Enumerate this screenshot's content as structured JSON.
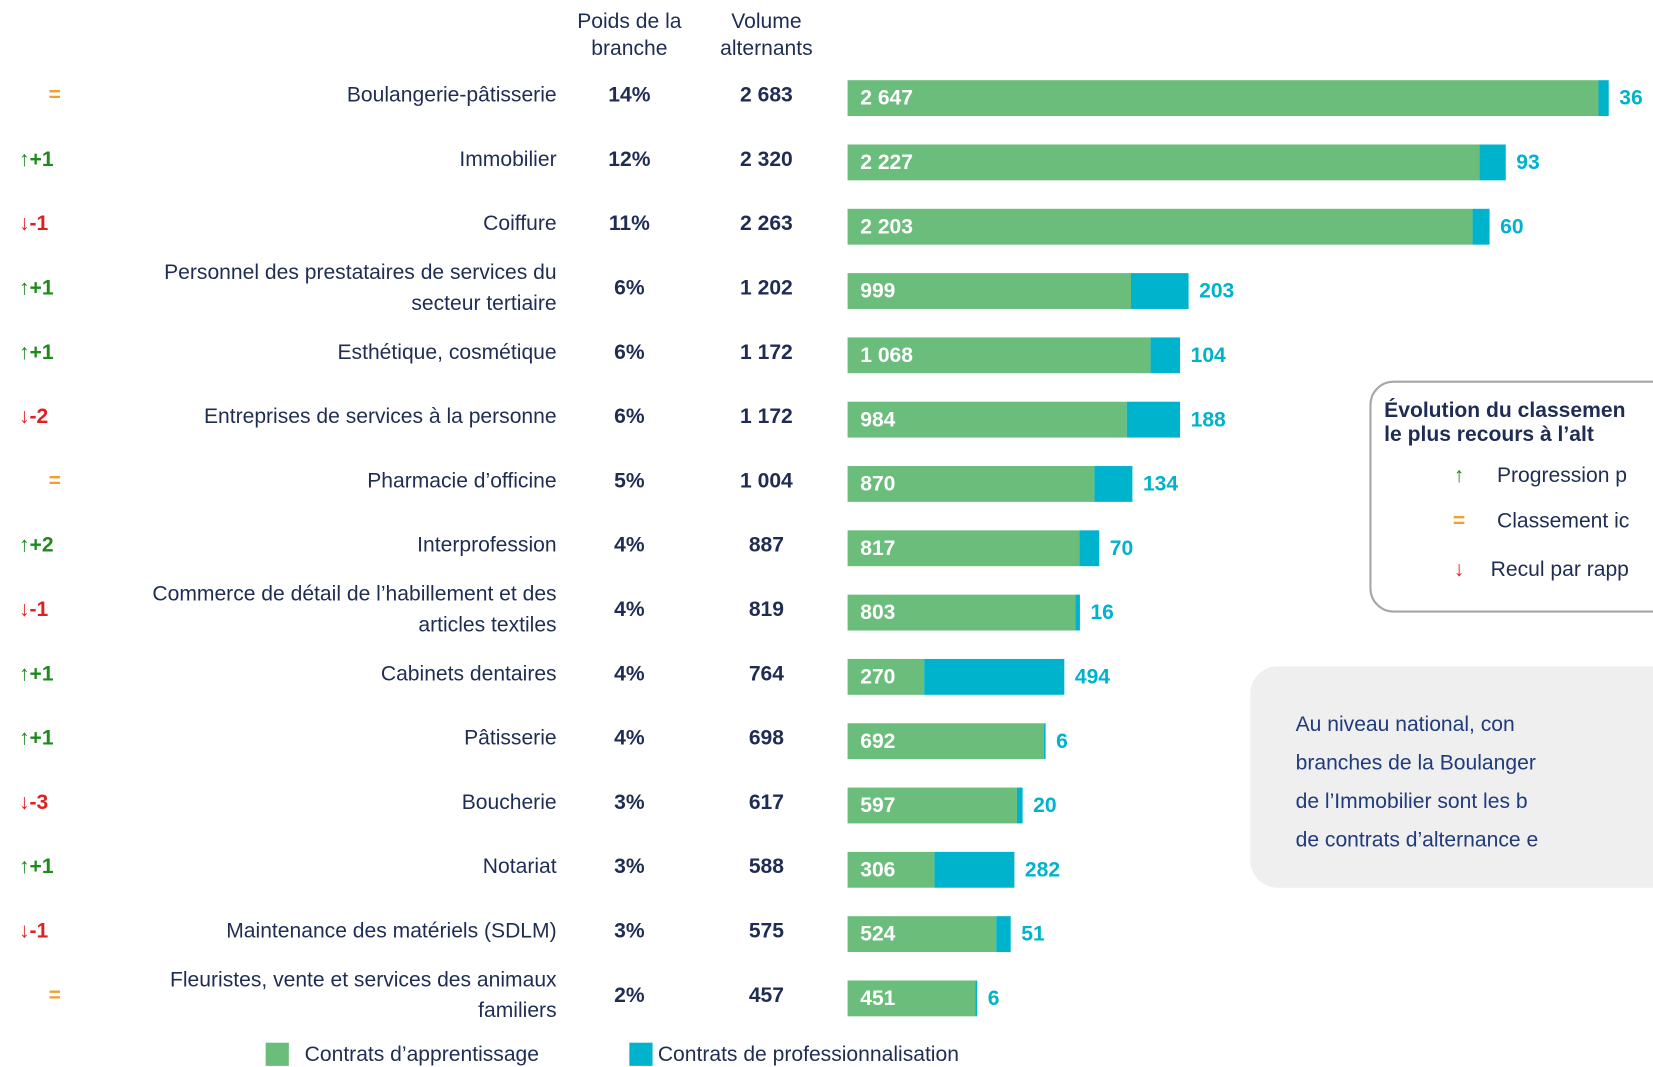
{
  "chart_data": {
    "type": "stacked_hbar",
    "column_headers": [
      [
        "Poids de la",
        "branche"
      ],
      [
        "Volume",
        "alternants"
      ]
    ],
    "categories": [
      [
        "Boulangerie-pâtisserie"
      ],
      [
        "Immobilier"
      ],
      [
        "Coiffure"
      ],
      [
        "Personnel des prestataires de services du",
        "secteur tertiaire"
      ],
      [
        "Esthétique, cosmétique"
      ],
      [
        "Entreprises de services à la personne"
      ],
      [
        "Pharmacie d’officine"
      ],
      [
        "Interprofession"
      ],
      [
        "Commerce de détail de l’habillement et des",
        "articles textiles"
      ],
      [
        "Cabinets dentaires"
      ],
      [
        "Pâtisserie"
      ],
      [
        "Boucherie"
      ],
      [
        "Notariat"
      ],
      [
        "Maintenance des matériels (SDLM)"
      ],
      [
        "Fleuristes, vente et services des animaux",
        "familiers"
      ]
    ],
    "rank_change": [
      "=",
      "↑+1",
      "↓-1",
      "↑+1",
      "↑+1",
      "↓-2",
      "=",
      "↑+2",
      "↓-1",
      "↑+1",
      "↑+1",
      "↓-3",
      "↑+1",
      "↓-1",
      "="
    ],
    "weight": [
      "14%",
      "12%",
      "11%",
      "6%",
      "6%",
      "6%",
      "5%",
      "4%",
      "4%",
      "4%",
      "4%",
      "3%",
      "3%",
      "3%",
      "2%"
    ],
    "volume": [
      "2 683",
      "2 320",
      "2 263",
      "1 202",
      "1 172",
      "1 172",
      "1 004",
      "887",
      "819",
      "764",
      "698",
      "617",
      "588",
      "575",
      "457"
    ],
    "series": [
      {
        "name": "Contrats d’apprentissage",
        "color": "#6abd7b",
        "values": [
          2647,
          2227,
          2203,
          999,
          1068,
          984,
          870,
          817,
          803,
          270,
          692,
          597,
          306,
          524,
          451
        ],
        "value_labels": [
          "2 647",
          "2 227",
          "2 203",
          "999",
          "1 068",
          "984",
          "870",
          "817",
          "803",
          "270",
          "692",
          "597",
          "306",
          "524",
          "451"
        ]
      },
      {
        "name": "Contrats de professionnalisation",
        "color": "#00b3cc",
        "values": [
          36,
          93,
          60,
          203,
          104,
          188,
          134,
          70,
          16,
          494,
          6,
          20,
          282,
          51,
          6
        ]
      }
    ],
    "legend_box": {
      "title": [
        "Évolution du classemen",
        "le plus recours à l’alt"
      ],
      "items": [
        {
          "symbol": "↑",
          "text": "Progression p"
        },
        {
          "symbol": "=",
          "text": "Classement ic"
        },
        {
          "symbol": "↓",
          "text": "Recul par rapp"
        }
      ]
    },
    "note": [
      "Au niveau national, con",
      "branches de la Boulanger",
      "de l’Immobilier sont les b",
      "de contrats d’alternance e"
    ]
  }
}
